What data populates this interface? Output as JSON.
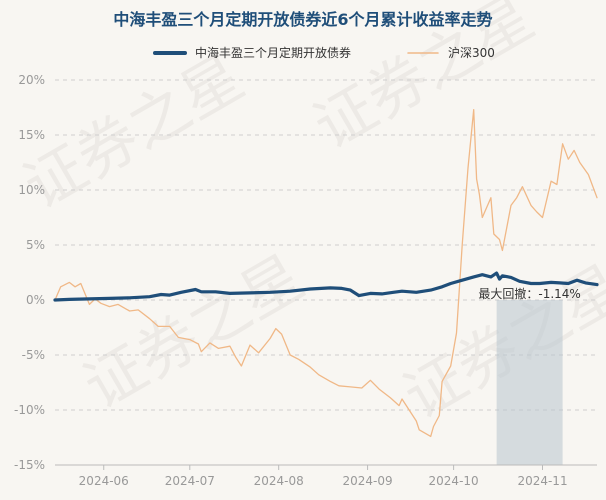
{
  "chart_data": {
    "type": "line",
    "title": "中海丰盈三个月定期开放债券近6个月累计收益率走势",
    "xlabel": "",
    "ylabel": "",
    "ylim": [
      -15,
      20
    ],
    "y_ticks": [
      "20%",
      "15%",
      "10%",
      "5%",
      "0%",
      "-5%",
      "-10%",
      "-15%"
    ],
    "y_tick_values": [
      20,
      15,
      10,
      5,
      0,
      -5,
      -10,
      -15
    ],
    "x_range": [
      "2024-05-15",
      "2024-11-20"
    ],
    "x_ticks": [
      "2024-06",
      "2024-07",
      "2024-08",
      "2024-09",
      "2024-10",
      "2024-11"
    ],
    "x_tick_dates": [
      "2024-06-01",
      "2024-07-01",
      "2024-08-01",
      "2024-09-01",
      "2024-10-01",
      "2024-11-01"
    ],
    "grid": "horizontal dashed",
    "legend_position": "top-center",
    "colors": {
      "fund": "#1f4e79",
      "index": "#f0b887",
      "title": "#1f4e79",
      "drawdown": "#b8c4ce"
    },
    "series": [
      {
        "name": "中海丰盈三个月定期开放债券",
        "color": "#1f4e79",
        "points": [
          [
            "2024-05-15",
            0
          ],
          [
            "2024-05-20",
            0.05
          ],
          [
            "2024-05-27",
            0.1
          ],
          [
            "2024-06-03",
            0.15
          ],
          [
            "2024-06-10",
            0.2
          ],
          [
            "2024-06-17",
            0.3
          ],
          [
            "2024-06-21",
            0.5
          ],
          [
            "2024-06-24",
            0.45
          ],
          [
            "2024-06-28",
            0.7
          ],
          [
            "2024-07-03",
            0.95
          ],
          [
            "2024-07-05",
            0.75
          ],
          [
            "2024-07-10",
            0.75
          ],
          [
            "2024-07-15",
            0.6
          ],
          [
            "2024-07-22",
            0.65
          ],
          [
            "2024-07-29",
            0.7
          ],
          [
            "2024-08-05",
            0.8
          ],
          [
            "2024-08-12",
            1.0
          ],
          [
            "2024-08-19",
            1.1
          ],
          [
            "2024-08-23",
            1.05
          ],
          [
            "2024-08-26",
            0.9
          ],
          [
            "2024-08-29",
            0.4
          ],
          [
            "2024-09-02",
            0.6
          ],
          [
            "2024-09-06",
            0.55
          ],
          [
            "2024-09-10",
            0.7
          ],
          [
            "2024-09-13",
            0.8
          ],
          [
            "2024-09-18",
            0.7
          ],
          [
            "2024-09-23",
            0.9
          ],
          [
            "2024-09-27",
            1.2
          ],
          [
            "2024-09-30",
            1.5
          ],
          [
            "2024-10-04",
            1.8
          ],
          [
            "2024-10-08",
            2.1
          ],
          [
            "2024-10-11",
            2.3
          ],
          [
            "2024-10-14",
            2.1
          ],
          [
            "2024-10-16",
            2.45
          ],
          [
            "2024-10-17",
            1.9
          ],
          [
            "2024-10-18",
            2.2
          ],
          [
            "2024-10-21",
            2.05
          ],
          [
            "2024-10-24",
            1.7
          ],
          [
            "2024-10-28",
            1.5
          ],
          [
            "2024-10-31",
            1.5
          ],
          [
            "2024-11-04",
            1.6
          ],
          [
            "2024-11-07",
            1.55
          ],
          [
            "2024-11-10",
            1.5
          ],
          [
            "2024-11-13",
            1.8
          ],
          [
            "2024-11-16",
            1.55
          ],
          [
            "2024-11-20",
            1.4
          ]
        ]
      },
      {
        "name": "沪深300",
        "color": "#f0b887",
        "points": [
          [
            "2024-05-15",
            0
          ],
          [
            "2024-05-17",
            1.2
          ],
          [
            "2024-05-20",
            1.6
          ],
          [
            "2024-05-22",
            1.2
          ],
          [
            "2024-05-24",
            1.5
          ],
          [
            "2024-05-27",
            -0.4
          ],
          [
            "2024-05-29",
            0.1
          ],
          [
            "2024-05-31",
            -0.3
          ],
          [
            "2024-06-03",
            -0.6
          ],
          [
            "2024-06-06",
            -0.4
          ],
          [
            "2024-06-10",
            -1.0
          ],
          [
            "2024-06-13",
            -0.9
          ],
          [
            "2024-06-17",
            -1.7
          ],
          [
            "2024-06-20",
            -2.4
          ],
          [
            "2024-06-24",
            -2.4
          ],
          [
            "2024-06-27",
            -3.4
          ],
          [
            "2024-07-01",
            -3.6
          ],
          [
            "2024-07-04",
            -4.0
          ],
          [
            "2024-07-05",
            -4.7
          ],
          [
            "2024-07-08",
            -3.9
          ],
          [
            "2024-07-11",
            -4.4
          ],
          [
            "2024-07-15",
            -4.2
          ],
          [
            "2024-07-17",
            -5.2
          ],
          [
            "2024-07-19",
            -6.0
          ],
          [
            "2024-07-22",
            -4.1
          ],
          [
            "2024-07-25",
            -4.8
          ],
          [
            "2024-07-29",
            -3.5
          ],
          [
            "2024-07-31",
            -2.6
          ],
          [
            "2024-08-02",
            -3.1
          ],
          [
            "2024-08-05",
            -5.0
          ],
          [
            "2024-08-08",
            -5.4
          ],
          [
            "2024-08-12",
            -6.1
          ],
          [
            "2024-08-15",
            -6.8
          ],
          [
            "2024-08-19",
            -7.4
          ],
          [
            "2024-08-22",
            -7.8
          ],
          [
            "2024-08-26",
            -7.9
          ],
          [
            "2024-08-30",
            -8.0
          ],
          [
            "2024-09-02",
            -7.3
          ],
          [
            "2024-09-05",
            -8.1
          ],
          [
            "2024-09-09",
            -8.9
          ],
          [
            "2024-09-12",
            -9.6
          ],
          [
            "2024-09-13",
            -9.0
          ],
          [
            "2024-09-18",
            -11.0
          ],
          [
            "2024-09-19",
            -11.8
          ],
          [
            "2024-09-23",
            -12.4
          ],
          [
            "2024-09-24",
            -11.5
          ],
          [
            "2024-09-26",
            -10.5
          ],
          [
            "2024-09-27",
            -7.4
          ],
          [
            "2024-09-30",
            -6.0
          ],
          [
            "2024-10-02",
            -3.0
          ],
          [
            "2024-10-04",
            5.0
          ],
          [
            "2024-10-06",
            12.0
          ],
          [
            "2024-10-08",
            17.3
          ],
          [
            "2024-10-09",
            11.0
          ],
          [
            "2024-10-10",
            9.6
          ],
          [
            "2024-10-11",
            7.5
          ],
          [
            "2024-10-14",
            9.3
          ],
          [
            "2024-10-15",
            6.0
          ],
          [
            "2024-10-17",
            5.5
          ],
          [
            "2024-10-18",
            4.5
          ],
          [
            "2024-10-21",
            8.6
          ],
          [
            "2024-10-23",
            9.3
          ],
          [
            "2024-10-25",
            10.3
          ],
          [
            "2024-10-28",
            8.6
          ],
          [
            "2024-10-30",
            8.0
          ],
          [
            "2024-11-01",
            7.5
          ],
          [
            "2024-11-04",
            10.8
          ],
          [
            "2024-11-06",
            10.5
          ],
          [
            "2024-11-08",
            14.2
          ],
          [
            "2024-11-10",
            12.8
          ],
          [
            "2024-11-12",
            13.6
          ],
          [
            "2024-11-14",
            12.5
          ],
          [
            "2024-11-17",
            11.4
          ],
          [
            "2024-11-20",
            9.3
          ]
        ]
      }
    ],
    "annotations": [
      {
        "text": "最大回撤：-1.14%",
        "x_start": "2024-10-16",
        "x_end": "2024-11-08"
      }
    ],
    "watermark": "证券之星"
  }
}
